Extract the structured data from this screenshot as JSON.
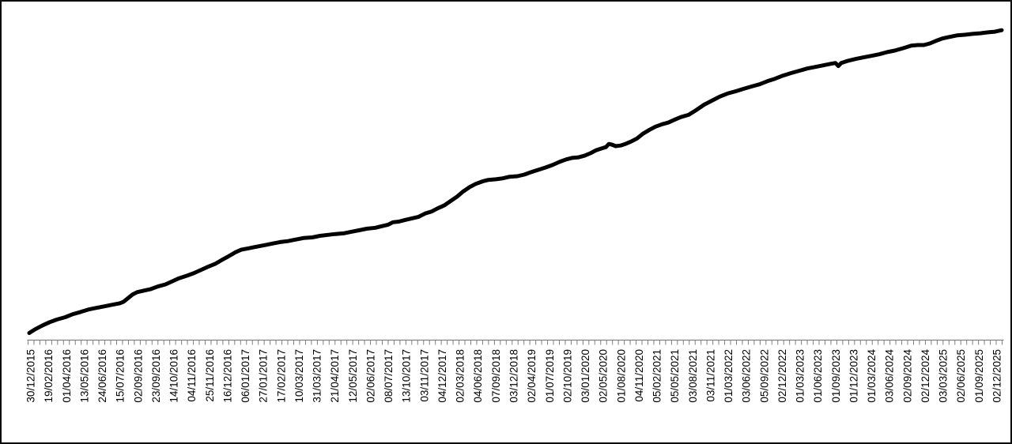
{
  "window": {
    "background": "#ffffff",
    "frame_border_color": "#0a0a0a"
  },
  "chart_data": {
    "type": "line",
    "title": "",
    "subtitle": "",
    "xlabel": "",
    "ylabel": "",
    "legend": "none",
    "grid": "off",
    "plot_background": "#ffffff",
    "x_axis": {
      "kind": "category-date",
      "axis_color": "#808080",
      "tick_color": "#808080",
      "tick_count": 166,
      "labels_every_n_ticks": 3,
      "label_rotation_deg": 90,
      "label_color": "#000000",
      "label_font_size_px": 13.5,
      "tick_labels": [
        "30/12/2015",
        "19/02/2016",
        "01/04/2016",
        "13/05/2016",
        "24/06/2016",
        "15/07/2016",
        "02/09/2016",
        "23/09/2016",
        "14/10/2016",
        "04/11/2016",
        "25/11/2016",
        "16/12/2016",
        "06/01/2017",
        "27/01/2017",
        "17/02/2017",
        "10/03/2017",
        "31/03/2017",
        "21/04/2017",
        "12/05/2017",
        "02/06/2017",
        "08/07/2017",
        "13/10/2017",
        "03/11/2017",
        "04/12/2017",
        "02/03/2018",
        "04/06/2018",
        "07/09/2018",
        "03/12/2018",
        "02/04/2019",
        "01/07/2019",
        "02/10/2019",
        "03/01/2020",
        "02/05/2020",
        "01/08/2020",
        "04/11/2020",
        "05/02/2021",
        "05/05/2021",
        "03/08/2021",
        "03/11/2021",
        "01/03/2022",
        "03/06/2022",
        "05/09/2022",
        "02/12/2022",
        "01/03/2023",
        "01/06/2023",
        "01/09/2023",
        "01/12/2023",
        "01/03/2024",
        "03/06/2024",
        "02/09/2024",
        "02/12/2024",
        "03/03/2025",
        "02/06/2025",
        "01/09/2025",
        "02/12/2025"
      ]
    },
    "y_axis": {
      "visible": false,
      "note": "no y-axis, gridlines or value labels are rendered; series levels are relative 0-100 of plot height"
    },
    "series": [
      {
        "name": "cumulative-line",
        "color": "#000000",
        "stroke_width_px": 5,
        "points_format": "[x_fraction_of_axis, relative_level_0_100]",
        "points": [
          [
            0.0,
            1.8
          ],
          [
            0.006,
            3.0
          ],
          [
            0.014,
            4.3
          ],
          [
            0.021,
            5.3
          ],
          [
            0.028,
            6.1
          ],
          [
            0.037,
            6.9
          ],
          [
            0.045,
            7.9
          ],
          [
            0.053,
            8.6
          ],
          [
            0.061,
            9.4
          ],
          [
            0.069,
            9.9
          ],
          [
            0.077,
            10.4
          ],
          [
            0.085,
            10.9
          ],
          [
            0.093,
            11.4
          ],
          [
            0.097,
            11.9
          ],
          [
            0.101,
            12.9
          ],
          [
            0.106,
            14.2
          ],
          [
            0.111,
            15.0
          ],
          [
            0.118,
            15.5
          ],
          [
            0.125,
            16.0
          ],
          [
            0.132,
            16.8
          ],
          [
            0.14,
            17.5
          ],
          [
            0.147,
            18.5
          ],
          [
            0.154,
            19.5
          ],
          [
            0.162,
            20.3
          ],
          [
            0.169,
            21.1
          ],
          [
            0.176,
            22.1
          ],
          [
            0.183,
            23.1
          ],
          [
            0.191,
            24.1
          ],
          [
            0.198,
            25.4
          ],
          [
            0.205,
            26.6
          ],
          [
            0.212,
            27.9
          ],
          [
            0.218,
            28.7
          ],
          [
            0.226,
            29.2
          ],
          [
            0.234,
            29.7
          ],
          [
            0.242,
            30.2
          ],
          [
            0.25,
            30.7
          ],
          [
            0.258,
            31.2
          ],
          [
            0.266,
            31.5
          ],
          [
            0.274,
            32.0
          ],
          [
            0.282,
            32.5
          ],
          [
            0.291,
            32.7
          ],
          [
            0.299,
            33.2
          ],
          [
            0.307,
            33.5
          ],
          [
            0.315,
            33.8
          ],
          [
            0.323,
            34.0
          ],
          [
            0.331,
            34.5
          ],
          [
            0.339,
            35.0
          ],
          [
            0.347,
            35.5
          ],
          [
            0.356,
            35.8
          ],
          [
            0.362,
            36.3
          ],
          [
            0.369,
            36.8
          ],
          [
            0.374,
            37.6
          ],
          [
            0.38,
            37.8
          ],
          [
            0.386,
            38.3
          ],
          [
            0.393,
            38.8
          ],
          [
            0.4,
            39.3
          ],
          [
            0.407,
            40.4
          ],
          [
            0.414,
            41.1
          ],
          [
            0.42,
            42.1
          ],
          [
            0.427,
            43.1
          ],
          [
            0.433,
            44.4
          ],
          [
            0.44,
            45.9
          ],
          [
            0.446,
            47.5
          ],
          [
            0.453,
            49.0
          ],
          [
            0.459,
            50.0
          ],
          [
            0.466,
            50.8
          ],
          [
            0.472,
            51.3
          ],
          [
            0.48,
            51.5
          ],
          [
            0.487,
            51.8
          ],
          [
            0.494,
            52.3
          ],
          [
            0.502,
            52.5
          ],
          [
            0.509,
            53.0
          ],
          [
            0.516,
            53.8
          ],
          [
            0.524,
            54.6
          ],
          [
            0.531,
            55.3
          ],
          [
            0.538,
            56.1
          ],
          [
            0.545,
            57.1
          ],
          [
            0.552,
            57.9
          ],
          [
            0.558,
            58.4
          ],
          [
            0.565,
            58.6
          ],
          [
            0.571,
            59.1
          ],
          [
            0.577,
            59.9
          ],
          [
            0.583,
            60.9
          ],
          [
            0.588,
            61.4
          ],
          [
            0.593,
            61.9
          ],
          [
            0.596,
            62.9
          ],
          [
            0.599,
            62.7
          ],
          [
            0.603,
            62.2
          ],
          [
            0.608,
            62.4
          ],
          [
            0.613,
            62.9
          ],
          [
            0.619,
            63.7
          ],
          [
            0.625,
            64.7
          ],
          [
            0.631,
            66.2
          ],
          [
            0.638,
            67.5
          ],
          [
            0.644,
            68.5
          ],
          [
            0.651,
            69.3
          ],
          [
            0.657,
            69.8
          ],
          [
            0.664,
            70.8
          ],
          [
            0.67,
            71.6
          ],
          [
            0.678,
            72.3
          ],
          [
            0.686,
            73.9
          ],
          [
            0.694,
            75.6
          ],
          [
            0.702,
            76.9
          ],
          [
            0.71,
            78.2
          ],
          [
            0.718,
            79.2
          ],
          [
            0.726,
            79.9
          ],
          [
            0.734,
            80.7
          ],
          [
            0.743,
            81.5
          ],
          [
            0.751,
            82.2
          ],
          [
            0.759,
            83.2
          ],
          [
            0.767,
            84.0
          ],
          [
            0.775,
            85.0
          ],
          [
            0.783,
            85.8
          ],
          [
            0.791,
            86.5
          ],
          [
            0.8,
            87.3
          ],
          [
            0.808,
            87.8
          ],
          [
            0.816,
            88.3
          ],
          [
            0.824,
            88.8
          ],
          [
            0.829,
            89.1
          ],
          [
            0.832,
            88.1
          ],
          [
            0.835,
            89.1
          ],
          [
            0.842,
            89.8
          ],
          [
            0.85,
            90.4
          ],
          [
            0.858,
            90.9
          ],
          [
            0.866,
            91.4
          ],
          [
            0.874,
            91.9
          ],
          [
            0.882,
            92.6
          ],
          [
            0.89,
            93.1
          ],
          [
            0.899,
            93.9
          ],
          [
            0.907,
            94.7
          ],
          [
            0.914,
            94.9
          ],
          [
            0.92,
            94.9
          ],
          [
            0.926,
            95.4
          ],
          [
            0.932,
            96.2
          ],
          [
            0.939,
            97.0
          ],
          [
            0.946,
            97.5
          ],
          [
            0.954,
            98.0
          ],
          [
            0.962,
            98.2
          ],
          [
            0.97,
            98.5
          ],
          [
            0.978,
            98.7
          ],
          [
            0.986,
            99.0
          ],
          [
            0.993,
            99.2
          ],
          [
            1.0,
            99.7
          ]
        ]
      }
    ]
  }
}
